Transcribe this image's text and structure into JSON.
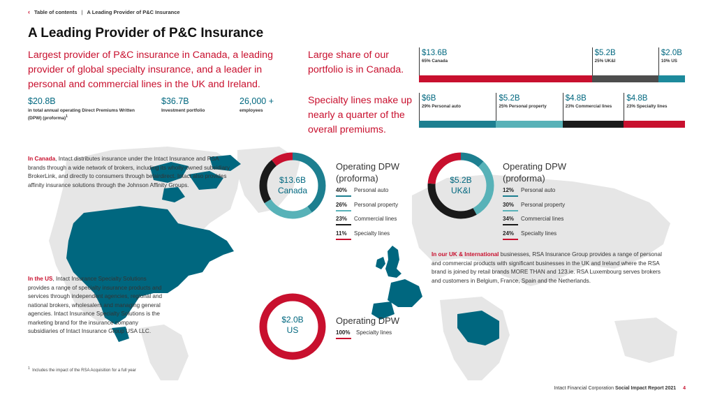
{
  "nav": {
    "toc": "Table of contents",
    "separator": "|",
    "current": "A Leading Provider of P&C Insurance"
  },
  "title": "A Leading Provider of P&C Insurance",
  "lead": "Largest provider of P&C insurance in Canada, a leading provider of global specialty insurance, and a leader in personal and commercial lines in the UK and Ireland.",
  "stats": [
    {
      "value": "$20.8B",
      "label": "in total annual operating Direct Premiums Written (DPW) (proforma)",
      "sup": "1"
    },
    {
      "value": "$36.7B",
      "label": "Investment portfolio"
    },
    {
      "value": "26,000 +",
      "label": "employees"
    }
  ],
  "mid_text_1": "Large share of our portfolio is in Canada.",
  "mid_text_2": "Specialty lines make up nearly a quarter of the overall premiums.",
  "geo_bar": [
    {
      "amount": "$13.6B",
      "label": "65% Canada",
      "share": 65,
      "color": "#c8102e"
    },
    {
      "amount": "$5.2B",
      "label": "25% UK&I",
      "share": 25,
      "color": "#4d4d4d"
    },
    {
      "amount": "$2.0B",
      "label": "10% US",
      "share": 10,
      "color": "#1d8a9c"
    }
  ],
  "line_bar": [
    {
      "amount": "$6B",
      "label": "29% Personal auto",
      "share": 29,
      "color": "#1d7f90"
    },
    {
      "amount": "$5.2B",
      "label": "25% Personal property",
      "share": 25,
      "color": "#58b2b8"
    },
    {
      "amount": "$4.8B",
      "label": "23% Commercial lines",
      "share": 23,
      "color": "#1a1a1a"
    },
    {
      "amount": "$4.8B",
      "label": "23% Specialty lines",
      "share": 23,
      "color": "#c8102e"
    }
  ],
  "canada_text": {
    "lead": "In Canada",
    "body": ", Intact distributes insurance under the Intact Insurance and RSA brands through a wide network of brokers, including its wholly-owned subsidiary BrokerLink, and directly to consumers through belairdirect. Intact also provides affinity insurance solutions through the Johnson Affinity Groups."
  },
  "us_text": {
    "lead": "In the US",
    "body": ", Intact Insurance Specialty Solutions provides a range of specialty insurance products and services through independent agencies, regional and national brokers, wholesalers and managing general agencies. Intact Insurance Specialty Solutions is the marketing brand for the insurance company subsidiaries of Intact Insurance Group USA LLC."
  },
  "uk_text": {
    "lead": "In our UK & International",
    "body": " businesses, RSA Insurance Group provides a range of personal and commercial products with significant businesses in the UK and Ireland where the RSA brand is joined by retail brands MORE THAN and 123.ie. RSA Luxembourg serves brokers and customers in Belgium, France, Spain and the Netherlands."
  },
  "donuts": {
    "canada": {
      "amount": "$13.6B",
      "region": "Canada",
      "title": "Operating DPW (proforma)",
      "rows": [
        {
          "pct": "40%",
          "label": "Personal auto",
          "value": 40,
          "color": "#1d7f90"
        },
        {
          "pct": "26%",
          "label": "Personal property",
          "value": 26,
          "color": "#58b2b8"
        },
        {
          "pct": "23%",
          "label": "Commercial lines",
          "value": 23,
          "color": "#1a1a1a"
        },
        {
          "pct": "11%",
          "label": "Specialty lines",
          "value": 11,
          "color": "#c8102e"
        }
      ]
    },
    "uk": {
      "amount": "$5.2B",
      "region": "UK&I",
      "title": "Operating DPW (proforma)",
      "rows": [
        {
          "pct": "12%",
          "label": "Personal auto",
          "value": 12,
          "color": "#1d7f90"
        },
        {
          "pct": "30%",
          "label": "Personal property",
          "value": 30,
          "color": "#58b2b8"
        },
        {
          "pct": "34%",
          "label": "Commercial lines",
          "value": 34,
          "color": "#1a1a1a"
        },
        {
          "pct": "24%",
          "label": "Specialty lines",
          "value": 24,
          "color": "#c8102e"
        }
      ]
    },
    "us": {
      "amount": "$2.0B",
      "region": "US",
      "title": "Operating DPW",
      "rows": [
        {
          "pct": "100%",
          "label": "Specialty lines",
          "value": 100,
          "color": "#c8102e"
        }
      ]
    }
  },
  "footnote": {
    "sup": "1",
    "text": "Includes the impact of the RSA Acquisition for a full year"
  },
  "footer": {
    "company": "Intact Financial Corporation",
    "report": "Social Impact Report 2021",
    "page": "4"
  }
}
